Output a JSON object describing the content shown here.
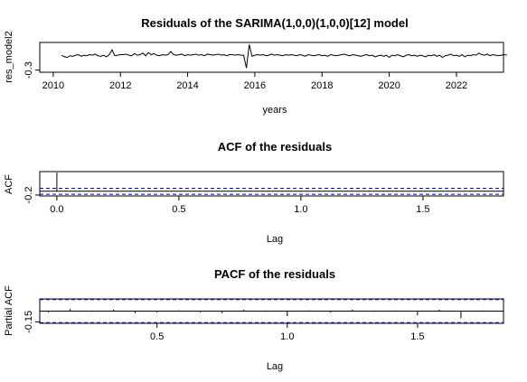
{
  "chart_data": [
    {
      "type": "line",
      "title": "Residuals of the SARIMA(1,0,0)(1,0,0)[12] model",
      "xlabel": "years",
      "ylabel": "res_model2",
      "x_ticks": [
        "2010",
        "2012",
        "2014",
        "2016",
        "2018",
        "2020",
        "2022"
      ],
      "y_ticks": [
        "-0.3"
      ],
      "xlim": [
        2009.6,
        2023.4
      ],
      "ylim": [
        -0.34,
        0.22
      ],
      "series": [
        {
          "x_start": 2010.25,
          "x_step": 0.08333,
          "values": [
            -0.02,
            -0.05,
            -0.06,
            -0.03,
            -0.04,
            -0.02,
            -0.01,
            -0.04,
            -0.02,
            -0.03,
            -0.01,
            -0.02,
            0.0,
            -0.03,
            -0.04,
            -0.02,
            -0.05,
            -0.01,
            0.08,
            -0.03,
            -0.02,
            -0.01,
            -0.01,
            0.0,
            -0.02,
            -0.03,
            0.01,
            -0.02,
            -0.01,
            0.02,
            -0.03,
            0.03,
            -0.01,
            0.01,
            -0.02,
            -0.03,
            -0.01,
            -0.02,
            -0.01,
            0.05,
            -0.01,
            -0.02,
            -0.01,
            0.0,
            -0.03,
            -0.01,
            -0.02,
            -0.01,
            0.0,
            -0.02,
            -0.01,
            -0.03,
            0.0,
            -0.01,
            -0.02,
            -0.01,
            0.0,
            -0.02,
            -0.01,
            -0.03,
            -0.01,
            -0.01,
            -0.02,
            -0.01,
            -0.02,
            -0.02,
            -0.26,
            0.18,
            -0.04,
            -0.02,
            -0.01,
            -0.02,
            -0.01,
            -0.03,
            -0.02,
            0.0,
            -0.02,
            -0.01,
            -0.02,
            -0.03,
            -0.01,
            -0.02,
            -0.01,
            -0.02,
            -0.03,
            -0.01,
            -0.02,
            -0.04,
            -0.01,
            -0.02,
            -0.03,
            -0.02,
            -0.01,
            -0.03,
            -0.02,
            -0.04,
            -0.01,
            -0.02,
            -0.03,
            -0.02,
            -0.01,
            0.0,
            -0.02,
            -0.03,
            -0.01,
            -0.02,
            -0.03,
            -0.04,
            -0.02,
            -0.01,
            -0.03,
            -0.02,
            -0.05,
            -0.03,
            -0.02,
            -0.04,
            -0.02,
            -0.06,
            -0.02,
            -0.03,
            -0.01,
            -0.03,
            -0.05,
            -0.02,
            -0.01,
            -0.03,
            -0.02,
            -0.04,
            -0.02,
            -0.03,
            -0.05,
            -0.02,
            -0.03,
            -0.01,
            -0.04,
            -0.02,
            -0.06,
            -0.03,
            -0.02,
            0.0,
            -0.03,
            -0.02,
            -0.04,
            -0.01,
            -0.05,
            -0.02,
            -0.03,
            -0.01,
            -0.02,
            0.02,
            -0.01,
            -0.02,
            0.0,
            -0.03,
            -0.01,
            -0.02,
            -0.03,
            -0.02,
            -0.01,
            -0.02
          ]
        }
      ]
    },
    {
      "type": "bar",
      "title": "ACF of the residuals",
      "xlabel": "Lag",
      "ylabel": "ACF",
      "x_ticks": [
        "0.0",
        "0.5",
        "1.0",
        "1.5"
      ],
      "y_ticks": [
        "-0.2"
      ],
      "xlim": [
        -0.07,
        1.83
      ],
      "ylim": [
        -0.25,
        1.05
      ],
      "lags": [
        0.0,
        0.0833,
        0.1667,
        0.25,
        0.3333,
        0.4167,
        0.5,
        0.5833,
        0.6667,
        0.75,
        0.8333,
        0.9167,
        1.0,
        1.0833,
        1.1667,
        1.25,
        1.3333,
        1.4167,
        1.5,
        1.5833,
        1.6667,
        1.75
      ],
      "values": [
        1.0,
        -0.02,
        0.01,
        -0.03,
        0.02,
        -0.01,
        0.01,
        -0.02,
        0.0,
        0.02,
        -0.01,
        0.01,
        -0.03,
        0.02,
        -0.01,
        0.0,
        0.01,
        -0.02,
        0.01,
        -0.01,
        0.02,
        0.0
      ],
      "conf_limit": 0.16
    },
    {
      "type": "bar",
      "title": "PACF of the residuals",
      "xlabel": "Lag",
      "ylabel": "Partial ACF",
      "x_ticks": [
        "0.5",
        "1.0",
        "1.5"
      ],
      "y_ticks": [
        "-0.15"
      ],
      "xlim": [
        0.05,
        1.83
      ],
      "ylim": [
        -0.17,
        0.17
      ],
      "lags": [
        0.0833,
        0.1667,
        0.25,
        0.3333,
        0.4167,
        0.5,
        0.5833,
        0.6667,
        0.75,
        0.8333,
        0.9167,
        1.0,
        1.0833,
        1.1667,
        1.25,
        1.3333,
        1.4167,
        1.5,
        1.5833,
        1.6667,
        1.75
      ],
      "values": [
        -0.02,
        0.03,
        -0.01,
        0.02,
        -0.03,
        -0.02,
        0.01,
        -0.02,
        -0.03,
        0.02,
        -0.01,
        -0.07,
        0.01,
        -0.02,
        0.02,
        -0.01,
        0.01,
        -0.06,
        0.02,
        -0.1,
        0.01
      ],
      "conf_limit": 0.16
    }
  ]
}
